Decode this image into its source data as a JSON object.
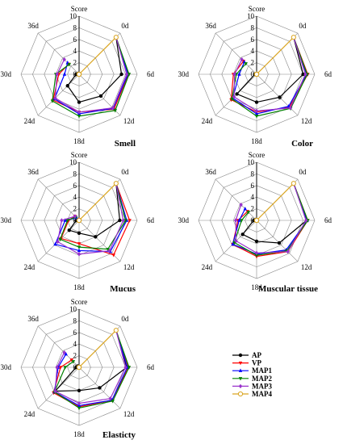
{
  "figure": {
    "score_label": "Score",
    "day_labels": [
      "0d",
      "6d",
      "12d",
      "18d",
      "24d",
      "30d",
      "36d"
    ],
    "ticks": [
      "0",
      "2",
      "4",
      "6",
      "8",
      "10"
    ]
  },
  "legend": {
    "entries": [
      {
        "name": "AP",
        "color": "#000000",
        "marker": "circle"
      },
      {
        "name": "VP",
        "color": "#ff0000",
        "marker": "triangle-down"
      },
      {
        "name": "MAP1",
        "color": "#0000ff",
        "marker": "triangle-up"
      },
      {
        "name": "MAP2",
        "color": "#008000",
        "marker": "triangle-down"
      },
      {
        "name": "MAP3",
        "color": "#9932cc",
        "marker": "diamond"
      },
      {
        "name": "MAP4",
        "color": "#daa520",
        "marker": "circle-open"
      }
    ]
  },
  "chart_data": [
    {
      "type": "radar",
      "title": "Smell",
      "axes": [
        "0d",
        "6d",
        "12d",
        "18d",
        "24d",
        "30d",
        "36d"
      ],
      "r_range": [
        0,
        10
      ],
      "ticks": [
        0,
        2,
        4,
        6,
        8,
        10
      ],
      "series": [
        {
          "name": "AP",
          "values": [
            9,
            7.3,
            5.3,
            4.8,
            2.8,
            0.5,
            0.2
          ]
        },
        {
          "name": "VP",
          "values": [
            9,
            8.5,
            8.5,
            6.5,
            6.3,
            3.5,
            2.5
          ]
        },
        {
          "name": "MAP1",
          "values": [
            9,
            8.4,
            8.3,
            6.8,
            6.0,
            2.5,
            2.8
          ]
        },
        {
          "name": "MAP2",
          "values": [
            9,
            8.6,
            8.8,
            7.2,
            6.5,
            4.0,
            2.4
          ]
        },
        {
          "name": "MAP3",
          "values": [
            9,
            8.2,
            8.2,
            6.5,
            5.8,
            3.8,
            3.6
          ]
        },
        {
          "name": "MAP4",
          "values": [
            9,
            0,
            0,
            0,
            0,
            0,
            0
          ]
        }
      ]
    },
    {
      "type": "radar",
      "title": "Color",
      "axes": [
        "0d",
        "6d",
        "12d",
        "18d",
        "24d",
        "30d",
        "36d"
      ],
      "r_range": [
        0,
        10
      ],
      "ticks": [
        0,
        2,
        4,
        6,
        8,
        10
      ],
      "series": [
        {
          "name": "AP",
          "values": [
            9,
            8.0,
            5.6,
            4.8,
            4.8,
            0.3,
            0.1
          ]
        },
        {
          "name": "VP",
          "values": [
            9,
            8.8,
            8.0,
            6.5,
            6.2,
            4.0,
            3.2
          ]
        },
        {
          "name": "MAP1",
          "values": [
            9,
            8.6,
            7.8,
            6.8,
            5.8,
            3.0,
            3.0
          ]
        },
        {
          "name": "MAP2",
          "values": [
            9,
            8.7,
            8.3,
            7.2,
            6.0,
            3.5,
            2.6
          ]
        },
        {
          "name": "MAP3",
          "values": [
            9,
            8.4,
            8.2,
            6.3,
            5.5,
            3.8,
            3.6
          ]
        },
        {
          "name": "MAP4",
          "values": [
            9,
            0,
            0,
            0,
            0,
            0,
            0
          ]
        }
      ]
    },
    {
      "type": "radar",
      "title": "Mucus",
      "axes": [
        "0d",
        "6d",
        "12d",
        "18d",
        "24d",
        "30d",
        "36d"
      ],
      "r_range": [
        0,
        10
      ],
      "ticks": [
        0,
        2,
        4,
        6,
        8,
        10
      ],
      "series": [
        {
          "name": "AP",
          "values": [
            9,
            7.0,
            4.0,
            2.2,
            2.4,
            0.5,
            0.2
          ]
        },
        {
          "name": "VP",
          "values": [
            9,
            8.7,
            8.4,
            4.0,
            4.4,
            1.8,
            1.0
          ]
        },
        {
          "name": "MAP1",
          "values": [
            9,
            8.2,
            7.6,
            5.2,
            5.8,
            2.4,
            0.6
          ]
        },
        {
          "name": "MAP2",
          "values": [
            9,
            8.0,
            7.0,
            4.6,
            4.6,
            2.0,
            0.8
          ]
        },
        {
          "name": "MAP3",
          "values": [
            9,
            7.6,
            7.4,
            5.8,
            5.2,
            3.0,
            1.0
          ]
        },
        {
          "name": "MAP4",
          "values": [
            9,
            0,
            0,
            0,
            0,
            0,
            0
          ]
        }
      ]
    },
    {
      "type": "radar",
      "title": "Muscular tissue",
      "axes": [
        "0d",
        "6d",
        "12d",
        "18d",
        "24d",
        "30d",
        "36d"
      ],
      "r_range": [
        0,
        10
      ],
      "ticks": [
        0,
        2,
        4,
        6,
        8,
        10
      ],
      "series": [
        {
          "name": "AP",
          "values": [
            9,
            8.6,
            5.5,
            3.6,
            3.4,
            0.5,
            0.2
          ]
        },
        {
          "name": "VP",
          "values": [
            9,
            8.8,
            7.6,
            6.2,
            5.8,
            3.2,
            2.2
          ]
        },
        {
          "name": "MAP1",
          "values": [
            9,
            8.7,
            7.2,
            5.8,
            5.8,
            3.0,
            2.8
          ]
        },
        {
          "name": "MAP2",
          "values": [
            9,
            8.8,
            7.4,
            6.0,
            5.4,
            2.6,
            2.0
          ]
        },
        {
          "name": "MAP3",
          "values": [
            9,
            8.5,
            7.6,
            5.6,
            5.0,
            3.6,
            3.8
          ]
        },
        {
          "name": "MAP4",
          "values": [
            9,
            0,
            0,
            0,
            0,
            0,
            0
          ]
        }
      ]
    },
    {
      "type": "radar",
      "title": "Elasticty",
      "axes": [
        "0d",
        "6d",
        "12d",
        "18d",
        "24d",
        "30d",
        "36d"
      ],
      "r_range": [
        0,
        10
      ],
      "ticks": [
        0,
        2,
        4,
        6,
        8,
        10
      ],
      "series": [
        {
          "name": "AP",
          "values": [
            9,
            8.2,
            5.0,
            4.0,
            5.8,
            0.5,
            0.3
          ]
        },
        {
          "name": "VP",
          "values": [
            9,
            8.5,
            8.0,
            6.8,
            6.2,
            3.2,
            1.8
          ]
        },
        {
          "name": "MAP1",
          "values": [
            9,
            8.3,
            8.0,
            6.6,
            6.0,
            3.6,
            3.2
          ]
        },
        {
          "name": "MAP2",
          "values": [
            9,
            8.6,
            8.2,
            7.0,
            6.0,
            2.4,
            1.4
          ]
        },
        {
          "name": "MAP3",
          "values": [
            9,
            8.0,
            7.6,
            6.2,
            5.8,
            3.8,
            3.6
          ]
        },
        {
          "name": "MAP4",
          "values": [
            9,
            0,
            0,
            0,
            0,
            0,
            0
          ]
        }
      ]
    }
  ]
}
